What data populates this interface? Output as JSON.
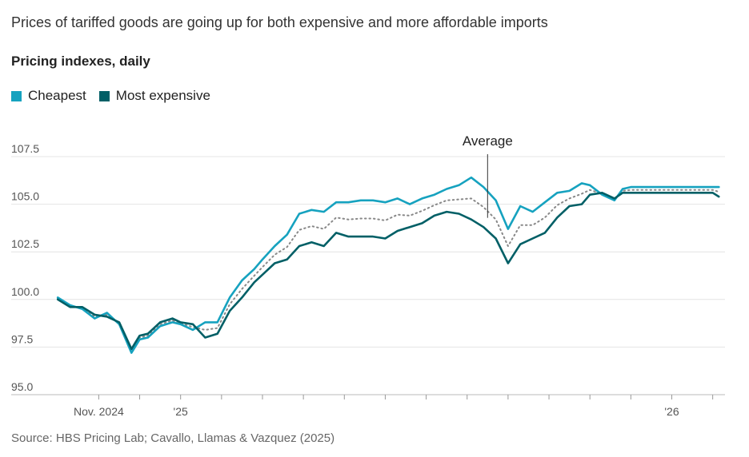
{
  "headline": "Prices of tariffed goods are going up for both expensive and more affordable imports",
  "subhead": "Pricing indexes, daily",
  "legend": [
    {
      "label": "Cheapest",
      "color": "#16a2bf"
    },
    {
      "label": "Most expensive",
      "color": "#005f66"
    }
  ],
  "source": "Source: HBS Pricing Lab; Cavallo, Llamas & Vazquez (2025)",
  "chart_data": {
    "type": "line",
    "title": "Pricing indexes, daily",
    "xlabel": "",
    "ylabel": "",
    "ylim": [
      95.0,
      107.5
    ],
    "xlim": [
      -1.2,
      15.3
    ],
    "y_ticks": [
      95.0,
      97.5,
      100.0,
      102.5,
      105.0,
      107.5
    ],
    "y_tick_labels": [
      "95.0",
      "97.5",
      "100.0",
      "102.5",
      "105.0",
      "107.5"
    ],
    "x_ticks": [
      0,
      1,
      2,
      3,
      4,
      5,
      6,
      7,
      8,
      9,
      10,
      11,
      12,
      13,
      14,
      15
    ],
    "x_tick_labels": [
      {
        "pos": 0,
        "label": "Nov. 2024"
      },
      {
        "pos": 2,
        "label": "'25"
      },
      {
        "pos": 14,
        "label": "'26"
      }
    ],
    "annotations": [
      {
        "label": "Average",
        "x": 9.5,
        "y": 104.2
      }
    ],
    "x": [
      -1.0,
      -0.7,
      -0.4,
      -0.1,
      0.2,
      0.5,
      0.8,
      1.0,
      1.2,
      1.5,
      1.8,
      2.0,
      2.3,
      2.6,
      2.9,
      3.2,
      3.5,
      3.8,
      4.0,
      4.3,
      4.6,
      4.9,
      5.2,
      5.5,
      5.8,
      6.1,
      6.4,
      6.7,
      7.0,
      7.3,
      7.6,
      7.9,
      8.2,
      8.5,
      8.8,
      9.1,
      9.4,
      9.7,
      10.0,
      10.3,
      10.6,
      10.9,
      11.2,
      11.5,
      11.8,
      12.0,
      12.3,
      12.6,
      12.8,
      13.0,
      13.3,
      13.6,
      13.9,
      14.2,
      14.5,
      14.8,
      15.0,
      15.15
    ],
    "series": [
      {
        "name": "Cheapest",
        "color": "#16a2bf",
        "style": "solid",
        "values": [
          100.1,
          99.7,
          99.5,
          99.0,
          99.3,
          98.7,
          97.2,
          97.9,
          98.0,
          98.6,
          98.8,
          98.7,
          98.4,
          98.8,
          98.8,
          100.1,
          101.0,
          101.6,
          102.1,
          102.8,
          103.4,
          104.5,
          104.7,
          104.6,
          105.1,
          105.1,
          105.2,
          105.2,
          105.1,
          105.3,
          105.0,
          105.3,
          105.5,
          105.8,
          106.0,
          106.4,
          105.9,
          105.2,
          103.7,
          104.9,
          104.6,
          105.1,
          105.6,
          105.7,
          106.1,
          106.0,
          105.5,
          105.2,
          105.8,
          105.9,
          105.9,
          105.9,
          105.9,
          105.9,
          105.9,
          105.9,
          105.9,
          105.9
        ]
      },
      {
        "name": "Most expensive",
        "color": "#005f66",
        "style": "solid",
        "values": [
          100.0,
          99.6,
          99.6,
          99.2,
          99.1,
          98.8,
          97.4,
          98.1,
          98.2,
          98.8,
          99.0,
          98.8,
          98.7,
          98.0,
          98.2,
          99.4,
          100.1,
          100.9,
          101.3,
          101.9,
          102.1,
          102.8,
          103.0,
          102.8,
          103.5,
          103.3,
          103.3,
          103.3,
          103.2,
          103.6,
          103.8,
          104.0,
          104.4,
          104.6,
          104.5,
          104.2,
          103.8,
          103.2,
          101.9,
          102.9,
          103.2,
          103.5,
          104.3,
          104.9,
          105.0,
          105.5,
          105.6,
          105.3,
          105.6,
          105.6,
          105.6,
          105.6,
          105.6,
          105.6,
          105.6,
          105.6,
          105.6,
          105.4
        ]
      },
      {
        "name": "Average",
        "color": "#888888",
        "style": "dotted",
        "values": [
          100.05,
          99.65,
          99.55,
          99.1,
          99.2,
          98.75,
          97.3,
          98.0,
          98.1,
          98.7,
          98.9,
          98.75,
          98.55,
          98.4,
          98.5,
          99.75,
          100.55,
          101.25,
          101.7,
          102.35,
          102.75,
          103.65,
          103.85,
          103.7,
          104.3,
          104.2,
          104.25,
          104.25,
          104.15,
          104.45,
          104.4,
          104.65,
          104.95,
          105.2,
          105.25,
          105.3,
          104.85,
          104.2,
          102.8,
          103.9,
          103.9,
          104.3,
          104.95,
          105.3,
          105.55,
          105.75,
          105.55,
          105.25,
          105.7,
          105.75,
          105.75,
          105.75,
          105.75,
          105.75,
          105.75,
          105.75,
          105.75,
          105.65
        ]
      }
    ]
  }
}
